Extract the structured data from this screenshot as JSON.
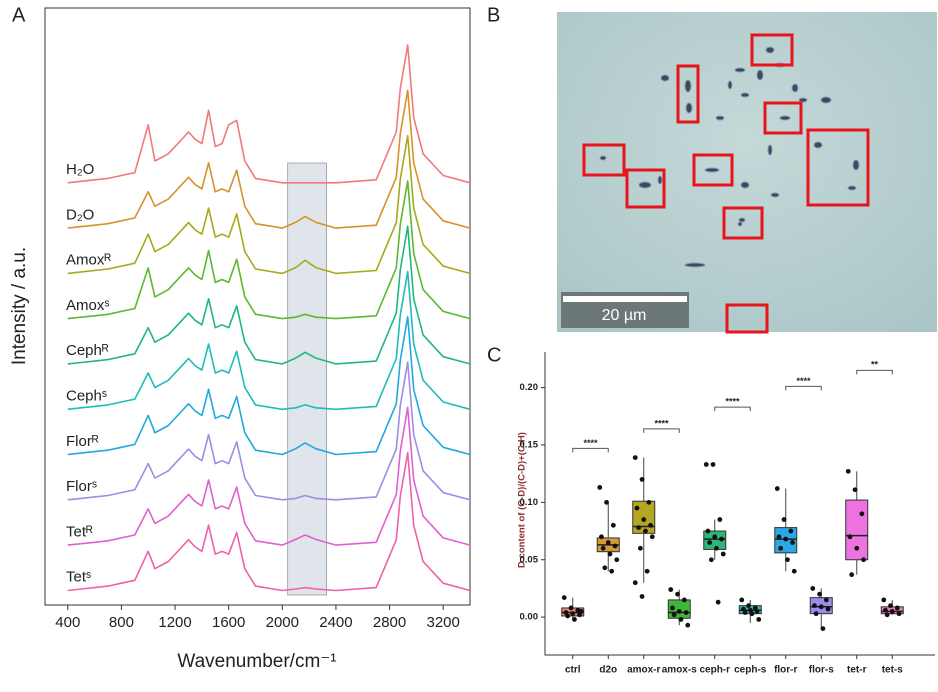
{
  "chart_data": [
    {
      "type": "line",
      "panel_label": "A",
      "y_label": "Intensity / a.u.",
      "x_label": "Wavenumber/cm⁻¹",
      "xlim": [
        230,
        3400
      ],
      "xticks": [
        400,
        800,
        1200,
        1600,
        2000,
        2400,
        2800,
        3200
      ],
      "shaded_region": [
        2040,
        2330
      ],
      "x": [
        400,
        500,
        600,
        700,
        800,
        900,
        1000,
        1050,
        1150,
        1250,
        1300,
        1350,
        1400,
        1450,
        1500,
        1550,
        1600,
        1660,
        1720,
        1800,
        2000,
        2100,
        2170,
        2250,
        2400,
        2700,
        2850,
        2880,
        2935,
        2980,
        3050,
        3200,
        3400
      ],
      "series": [
        {
          "name": "H₂O",
          "color": "#f07a7a",
          "values": [
            0.05,
            0.06,
            0.07,
            0.08,
            0.1,
            0.12,
            0.45,
            0.2,
            0.25,
            0.35,
            0.4,
            0.35,
            0.32,
            0.55,
            0.3,
            0.32,
            0.45,
            0.48,
            0.2,
            0.08,
            0.05,
            0.05,
            0.05,
            0.05,
            0.05,
            0.07,
            0.4,
            0.7,
            1.0,
            0.5,
            0.25,
            0.1,
            0.05
          ]
        },
        {
          "name": "D₂O",
          "color": "#d9912a",
          "values": [
            0.05,
            0.06,
            0.07,
            0.08,
            0.1,
            0.12,
            0.3,
            0.2,
            0.25,
            0.35,
            0.4,
            0.35,
            0.32,
            0.5,
            0.3,
            0.32,
            0.3,
            0.45,
            0.2,
            0.08,
            0.05,
            0.09,
            0.13,
            0.09,
            0.05,
            0.07,
            0.4,
            0.7,
            1.0,
            0.5,
            0.25,
            0.1,
            0.05
          ]
        },
        {
          "name": "Amoxᴿ",
          "color": "#a8a81a",
          "values": [
            0.05,
            0.06,
            0.07,
            0.08,
            0.1,
            0.12,
            0.32,
            0.2,
            0.25,
            0.35,
            0.4,
            0.35,
            0.32,
            0.5,
            0.3,
            0.32,
            0.3,
            0.46,
            0.2,
            0.08,
            0.05,
            0.09,
            0.14,
            0.09,
            0.05,
            0.07,
            0.4,
            0.7,
            1.0,
            0.5,
            0.25,
            0.1,
            0.05
          ]
        },
        {
          "name": "Amoxˢ",
          "color": "#5cb82e",
          "values": [
            0.05,
            0.06,
            0.07,
            0.08,
            0.1,
            0.12,
            0.4,
            0.2,
            0.25,
            0.35,
            0.4,
            0.35,
            0.32,
            0.52,
            0.3,
            0.32,
            0.3,
            0.46,
            0.2,
            0.08,
            0.05,
            0.06,
            0.08,
            0.06,
            0.05,
            0.07,
            0.4,
            0.7,
            1.0,
            0.5,
            0.25,
            0.1,
            0.05
          ]
        },
        {
          "name": "Cephᴿ",
          "color": "#1fb87a",
          "values": [
            0.05,
            0.06,
            0.07,
            0.08,
            0.1,
            0.12,
            0.3,
            0.2,
            0.25,
            0.35,
            0.4,
            0.35,
            0.32,
            0.5,
            0.3,
            0.32,
            0.3,
            0.45,
            0.2,
            0.08,
            0.05,
            0.09,
            0.13,
            0.09,
            0.05,
            0.07,
            0.4,
            0.7,
            1.0,
            0.5,
            0.25,
            0.1,
            0.05
          ]
        },
        {
          "name": "Cephˢ",
          "color": "#20bcb8",
          "values": [
            0.05,
            0.06,
            0.07,
            0.08,
            0.1,
            0.12,
            0.3,
            0.2,
            0.25,
            0.35,
            0.4,
            0.35,
            0.32,
            0.5,
            0.3,
            0.32,
            0.3,
            0.45,
            0.2,
            0.08,
            0.05,
            0.06,
            0.08,
            0.06,
            0.05,
            0.07,
            0.4,
            0.7,
            1.0,
            0.5,
            0.25,
            0.1,
            0.05
          ]
        },
        {
          "name": "Florᴿ",
          "color": "#20a8e0",
          "values": [
            0.05,
            0.06,
            0.07,
            0.08,
            0.1,
            0.12,
            0.32,
            0.2,
            0.25,
            0.35,
            0.4,
            0.35,
            0.32,
            0.5,
            0.3,
            0.32,
            0.3,
            0.45,
            0.2,
            0.08,
            0.05,
            0.09,
            0.13,
            0.09,
            0.05,
            0.07,
            0.4,
            0.7,
            1.0,
            0.5,
            0.25,
            0.1,
            0.05
          ]
        },
        {
          "name": "Florˢ",
          "color": "#9a8ee8",
          "values": [
            0.05,
            0.06,
            0.07,
            0.08,
            0.1,
            0.12,
            0.3,
            0.2,
            0.25,
            0.35,
            0.4,
            0.35,
            0.32,
            0.5,
            0.3,
            0.32,
            0.3,
            0.45,
            0.2,
            0.08,
            0.05,
            0.06,
            0.08,
            0.06,
            0.05,
            0.07,
            0.4,
            0.7,
            1.0,
            0.5,
            0.25,
            0.1,
            0.05
          ]
        },
        {
          "name": "Tetᴿ",
          "color": "#e060d0",
          "values": [
            0.05,
            0.06,
            0.07,
            0.08,
            0.1,
            0.12,
            0.3,
            0.2,
            0.25,
            0.35,
            0.4,
            0.35,
            0.32,
            0.5,
            0.3,
            0.32,
            0.3,
            0.45,
            0.2,
            0.08,
            0.05,
            0.09,
            0.12,
            0.09,
            0.05,
            0.07,
            0.4,
            0.7,
            1.0,
            0.5,
            0.25,
            0.1,
            0.05
          ]
        },
        {
          "name": "Tetˢ",
          "color": "#f060a8",
          "values": [
            0.05,
            0.06,
            0.07,
            0.08,
            0.1,
            0.12,
            0.32,
            0.2,
            0.25,
            0.35,
            0.4,
            0.35,
            0.32,
            0.5,
            0.3,
            0.32,
            0.3,
            0.45,
            0.2,
            0.08,
            0.05,
            0.06,
            0.07,
            0.06,
            0.05,
            0.07,
            0.4,
            0.7,
            1.0,
            0.5,
            0.25,
            0.1,
            0.05
          ]
        }
      ]
    },
    {
      "type": "image",
      "panel_label": "B",
      "scale_bar": "20 µm"
    },
    {
      "type": "box",
      "panel_label": "C",
      "y_label": "D content of (C-D)/(C-D)+(C-H)",
      "ylim": [
        -0.033,
        0.231
      ],
      "yticks": [
        {
          "value": 0,
          "label": "0.00"
        },
        {
          "value": 0.05,
          "label": "0.05"
        },
        {
          "value": 0.1,
          "label": "0.10"
        },
        {
          "value": 0.15,
          "label": "0.15"
        },
        {
          "value": 0.2,
          "label": "0.20"
        }
      ],
      "categories": [
        "ctrl",
        "d2o",
        "amox-r",
        "amox-s",
        "ceph-r",
        "ceph-s",
        "flor-r",
        "flor-s",
        "tet-r",
        "tet-s"
      ],
      "colors": [
        "#e8837b",
        "#d89a35",
        "#b3a820",
        "#3fb83a",
        "#2cb87a",
        "#2cbcb8",
        "#2aa8e8",
        "#9a8ee8",
        "#ee72e0",
        "#f07ab8"
      ],
      "boxes": [
        {
          "min": -0.002,
          "q1": 0.001,
          "median": 0.004,
          "q3": 0.008,
          "max": 0.017,
          "points": [
            0.017,
            0.008,
            0.006,
            0.004,
            0.003,
            0.002,
            0.001,
            -0.002,
            0.005
          ]
        },
        {
          "min": 0.04,
          "q1": 0.057,
          "median": 0.063,
          "q3": 0.069,
          "max": 0.1,
          "points": [
            0.113,
            0.1,
            0.08,
            0.07,
            0.065,
            0.062,
            0.06,
            0.055,
            0.05,
            0.043,
            0.04
          ]
        },
        {
          "min": 0.03,
          "q1": 0.073,
          "median": 0.079,
          "q3": 0.101,
          "max": 0.139,
          "points": [
            0.139,
            0.12,
            0.1,
            0.095,
            0.085,
            0.08,
            0.078,
            0.075,
            0.07,
            0.06,
            0.04,
            0.03,
            0.018
          ]
        },
        {
          "min": -0.007,
          "q1": -0.001,
          "median": 0.004,
          "q3": 0.015,
          "max": 0.024,
          "points": [
            0.024,
            0.02,
            0.015,
            0.008,
            0.005,
            0.004,
            0.002,
            -0.002,
            -0.007
          ]
        },
        {
          "min": 0.05,
          "q1": 0.059,
          "median": 0.068,
          "q3": 0.075,
          "max": 0.085,
          "points": [
            0.133,
            0.133,
            0.085,
            0.075,
            0.07,
            0.068,
            0.065,
            0.06,
            0.055,
            0.05,
            0.013
          ]
        },
        {
          "min": -0.005,
          "q1": 0.003,
          "median": 0.006,
          "q3": 0.01,
          "max": 0.015,
          "points": [
            0.015,
            0.01,
            0.008,
            0.007,
            0.006,
            0.005,
            0.004,
            0.003,
            -0.002
          ]
        },
        {
          "min": 0.04,
          "q1": 0.056,
          "median": 0.068,
          "q3": 0.078,
          "max": 0.112,
          "points": [
            0.112,
            0.085,
            0.075,
            0.07,
            0.068,
            0.065,
            0.06,
            0.05,
            0.04
          ]
        },
        {
          "min": -0.01,
          "q1": 0.003,
          "median": 0.009,
          "q3": 0.017,
          "max": 0.025,
          "points": [
            0.025,
            0.02,
            0.015,
            0.01,
            0.009,
            0.007,
            0.003,
            -0.01
          ]
        },
        {
          "min": 0.037,
          "q1": 0.05,
          "median": 0.071,
          "q3": 0.102,
          "max": 0.127,
          "points": [
            0.127,
            0.111,
            0.09,
            0.07,
            0.06,
            0.05,
            0.037
          ]
        },
        {
          "min": 0.002,
          "q1": 0.003,
          "median": 0.005,
          "q3": 0.009,
          "max": 0.015,
          "points": [
            0.015,
            0.01,
            0.008,
            0.006,
            0.005,
            0.003,
            0.002
          ]
        }
      ],
      "significance": [
        {
          "pair": [
            0,
            1
          ],
          "y": 0.147,
          "label": "****"
        },
        {
          "pair": [
            2,
            3
          ],
          "y": 0.164,
          "label": "****"
        },
        {
          "pair": [
            4,
            5
          ],
          "y": 0.183,
          "label": "****"
        },
        {
          "pair": [
            6,
            7
          ],
          "y": 0.201,
          "label": "****"
        },
        {
          "pair": [
            8,
            9
          ],
          "y": 0.215,
          "label": "**"
        }
      ]
    }
  ]
}
